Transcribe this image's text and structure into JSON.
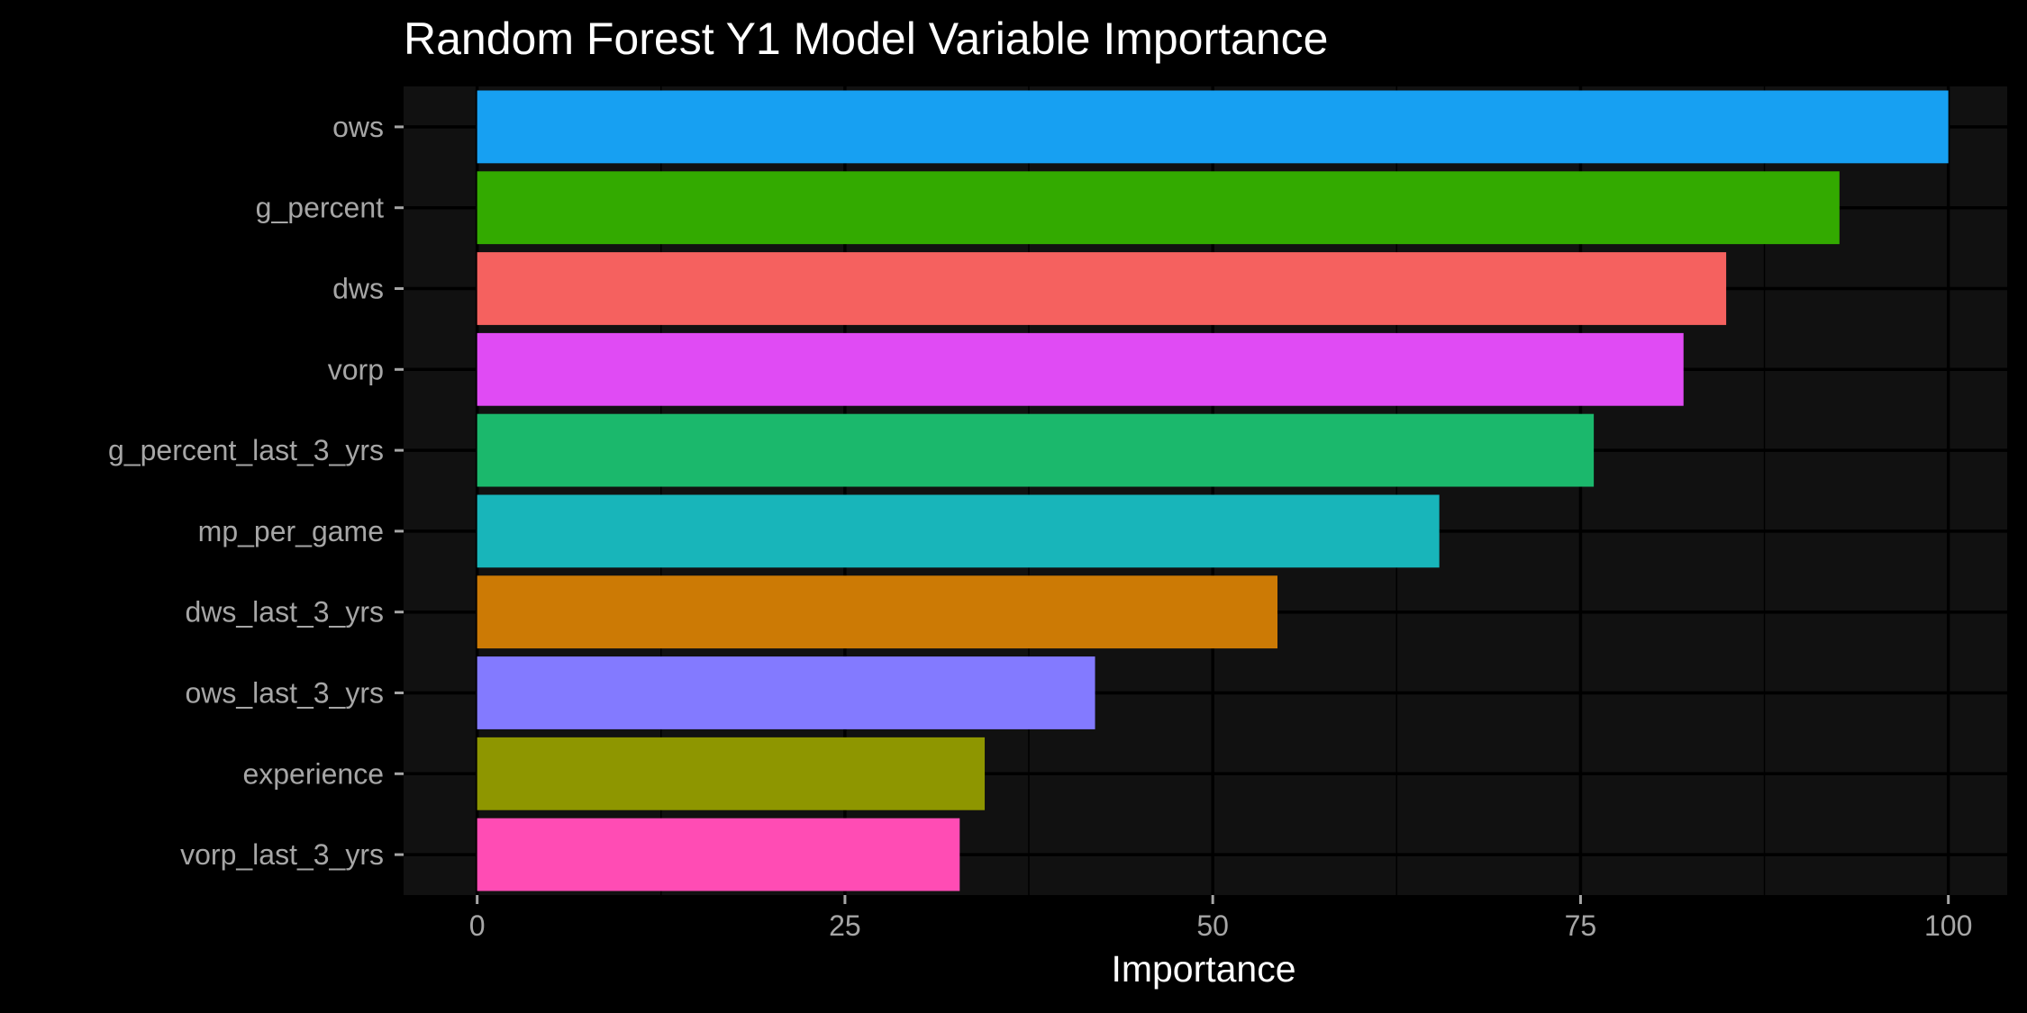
{
  "chart_data": {
    "type": "bar",
    "orientation": "horizontal",
    "title": "Random Forest Y1 Model Variable Importance",
    "xlabel": "Importance",
    "ylabel": "",
    "xlim": [
      -5,
      104
    ],
    "xticks": [
      0,
      25,
      50,
      75,
      100
    ],
    "grid": true,
    "legend": "none",
    "categories": [
      "ows",
      "g_percent",
      "dws",
      "vorp",
      "g_percent_last_3_yrs",
      "mp_per_game",
      "dws_last_3_yrs",
      "ows_last_3_yrs",
      "experience",
      "vorp_last_3_yrs"
    ],
    "values": [
      100,
      92.6,
      84.9,
      82.0,
      75.9,
      65.4,
      54.4,
      42.0,
      34.5,
      32.8
    ],
    "colors": [
      "#17A0F2",
      "#33AA00",
      "#F5615F",
      "#E04BF4",
      "#1BB86C",
      "#18B5BA",
      "#CC7A05",
      "#837AFF",
      "#8E9600",
      "#FF4CB4"
    ]
  },
  "theme": {
    "background": "#000000",
    "panel": "#111111",
    "grid": "#000000",
    "text": "#ffffff",
    "tick_text": "#a6a6a6"
  }
}
